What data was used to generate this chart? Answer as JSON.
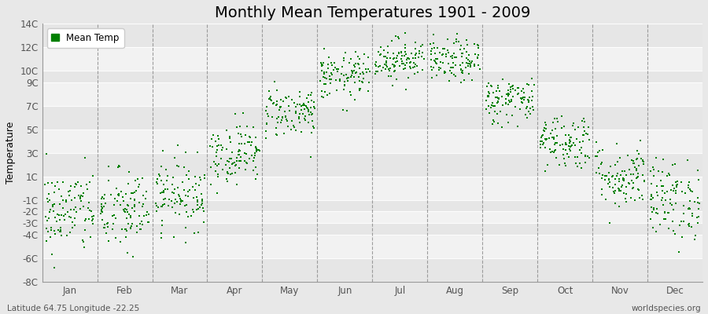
{
  "title": "Monthly Mean Temperatures 1901 - 2009",
  "ylabel": "Temperature",
  "subtitle_left": "Latitude 64.75 Longitude -22.25",
  "subtitle_right": "worldspecies.org",
  "legend_label": "Mean Temp",
  "dot_color": "#008000",
  "fig_bg_color": "#E8E8E8",
  "plot_bg_color": "#F2F2F2",
  "band_color_light": "#F2F2F2",
  "band_color_dark": "#E6E6E6",
  "ylim": [
    -8,
    14
  ],
  "ytick_positions": [
    -8,
    -6,
    -4,
    -3,
    -2,
    -1,
    1,
    3,
    5,
    7,
    9,
    10,
    12,
    14
  ],
  "ytick_labels": [
    "-8C",
    "-6C",
    "-4C",
    "-3C",
    "-2C",
    "-1C",
    "1C",
    "3C",
    "5C",
    "7C",
    "9C",
    "10C",
    "12C",
    "14C"
  ],
  "months": [
    "Jan",
    "Feb",
    "Mar",
    "Apr",
    "May",
    "Jun",
    "Jul",
    "Aug",
    "Sep",
    "Oct",
    "Nov",
    "Dec"
  ],
  "monthly_means": [
    -2.0,
    -2.0,
    -0.5,
    3.0,
    6.5,
    9.5,
    11.0,
    10.8,
    7.5,
    4.0,
    1.0,
    -1.0
  ],
  "monthly_stds": [
    1.8,
    1.8,
    1.5,
    1.3,
    1.1,
    1.0,
    0.9,
    0.9,
    1.0,
    1.2,
    1.4,
    1.7
  ],
  "n_years": 109,
  "random_seed": 42,
  "marker_size": 4,
  "title_fontsize": 14,
  "axis_fontsize": 9,
  "tick_fontsize": 8.5
}
